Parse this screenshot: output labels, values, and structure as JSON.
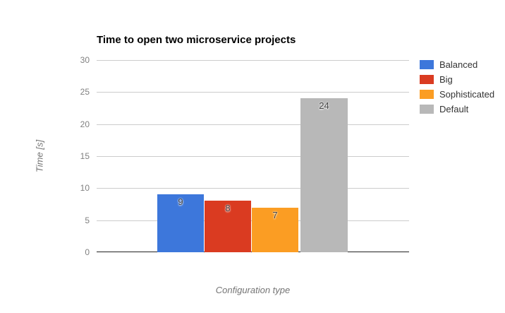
{
  "chart_data": {
    "type": "bar",
    "title": "Time to open two microservice projects",
    "xlabel": "Configuration type",
    "ylabel": "Time [s]",
    "ylim": [
      0,
      30
    ],
    "yticks": [
      0,
      5,
      10,
      15,
      20,
      25,
      30
    ],
    "grid": true,
    "legend_position": "right",
    "series": [
      {
        "name": "Balanced",
        "value": 9,
        "color": "#3D77DB"
      },
      {
        "name": "Big",
        "value": 8,
        "color": "#DA3B21"
      },
      {
        "name": "Sophisticated",
        "value": 7,
        "color": "#FB9D23"
      },
      {
        "name": "Default",
        "value": 24,
        "color": "#B8B8B8"
      }
    ],
    "annotations": [
      "9",
      "8",
      "7",
      "24"
    ],
    "grid_color": "#cccccc",
    "axis_color": "#222222",
    "tick_label_color": "#808080",
    "annotation_color": "#474747"
  }
}
